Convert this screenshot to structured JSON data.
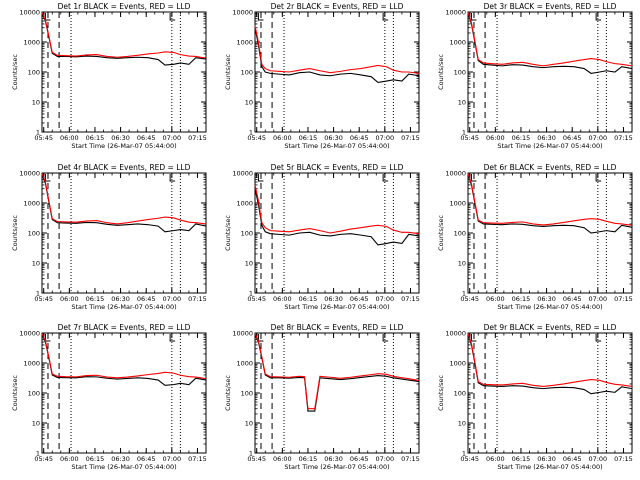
{
  "figure": {
    "series_colors": {
      "events": "#000000",
      "lld": "#ff0000"
    },
    "y_scale": "log",
    "ylim": [
      1,
      10000
    ],
    "xlim": [
      "05:44",
      "07:20"
    ],
    "x_tick_labels": [
      "05:45",
      "06:00",
      "06:15",
      "06:30",
      "06:45",
      "07:00",
      "07:15"
    ],
    "y_tick_labels": [
      "1",
      "10",
      "100",
      "1000",
      "10000"
    ]
  },
  "chart_data": [
    {
      "type": "line",
      "title": "Det 1r BLACK = Events, RED = LLD",
      "xlabel": "Start Time (26-Mar-07 05:44:00)",
      "ylabel": "Counts/sec",
      "x_tick_labels": [
        "05:45",
        "06:00",
        "06:15",
        "06:30",
        "06:45",
        "07:00",
        "07:15"
      ],
      "y_tick_labels": [
        "1",
        "10",
        "100",
        "1000",
        "10000"
      ],
      "x_minutes": [
        0,
        2,
        4,
        6,
        9,
        14,
        20,
        26,
        32,
        38,
        44,
        50,
        56,
        62,
        68,
        72,
        77,
        81,
        86,
        90,
        96
      ],
      "series": [
        {
          "values": [
            9000,
            5000,
            1500,
            420,
            330,
            330,
            320,
            340,
            330,
            300,
            285,
            300,
            310,
            300,
            260,
            170,
            180,
            200,
            180,
            300,
            270
          ]
        },
        {
          "values": [
            9500,
            5500,
            1600,
            450,
            360,
            350,
            340,
            370,
            380,
            330,
            310,
            330,
            360,
            400,
            430,
            470,
            450,
            380,
            340,
            330,
            290
          ]
        }
      ],
      "vlines_dashed": [
        3.5,
        10
      ],
      "vlines_dotted": [
        17,
        76,
        81
      ]
    },
    {
      "type": "line",
      "title": "Det 2r BLACK = Events, RED = LLD",
      "xlabel": "Start Time (26-Mar-07 05:44:00)",
      "ylabel": "Counts/sec",
      "x_tick_labels": [
        "05:45",
        "06:00",
        "06:15",
        "06:30",
        "06:45",
        "07:00",
        "07:15"
      ],
      "y_tick_labels": [
        "1",
        "10",
        "100",
        "1000",
        "10000"
      ],
      "x_minutes": [
        0,
        2,
        4,
        6,
        9,
        14,
        20,
        26,
        32,
        38,
        44,
        50,
        56,
        62,
        68,
        72,
        77,
        81,
        86,
        90,
        96
      ],
      "series": [
        {
          "values": [
            3000,
            800,
            150,
            100,
            90,
            85,
            80,
            95,
            100,
            80,
            75,
            85,
            90,
            80,
            70,
            45,
            50,
            55,
            50,
            85,
            75
          ]
        },
        {
          "values": [
            3500,
            1000,
            180,
            130,
            110,
            105,
            100,
            115,
            130,
            110,
            95,
            105,
            120,
            130,
            150,
            165,
            150,
            115,
            100,
            100,
            90
          ]
        }
      ],
      "vlines_dashed": [
        3.5,
        10
      ],
      "vlines_dotted": [
        17,
        76,
        81
      ]
    },
    {
      "type": "line",
      "title": "Det 3r BLACK = Events, RED = LLD",
      "xlabel": "Start Time (26-Mar-07 05:44:00)",
      "ylabel": "Counts/sec",
      "x_tick_labels": [
        "05:45",
        "06:00",
        "06:15",
        "06:30",
        "06:45",
        "07:00",
        "07:15"
      ],
      "y_tick_labels": [
        "1",
        "10",
        "100",
        "1000",
        "10000"
      ],
      "x_minutes": [
        0,
        2,
        4,
        6,
        9,
        14,
        20,
        26,
        32,
        38,
        44,
        50,
        56,
        62,
        68,
        72,
        77,
        81,
        86,
        90,
        96
      ],
      "series": [
        {
          "values": [
            9000,
            4000,
            1000,
            240,
            180,
            170,
            160,
            175,
            170,
            150,
            140,
            150,
            155,
            150,
            130,
            90,
            100,
            110,
            100,
            150,
            130
          ]
        },
        {
          "values": [
            9500,
            4500,
            1100,
            260,
            200,
            190,
            180,
            200,
            210,
            180,
            160,
            180,
            200,
            230,
            260,
            280,
            260,
            220,
            190,
            180,
            160
          ]
        }
      ],
      "vlines_dashed": [
        3.5,
        10
      ],
      "vlines_dotted": [
        17,
        76,
        81
      ]
    },
    {
      "type": "line",
      "title": "Det 4r BLACK = Events, RED = LLD",
      "xlabel": "Start Time (26-Mar-07 05:44:00)",
      "ylabel": "Counts/sec",
      "x_tick_labels": [
        "05:45",
        "06:00",
        "06:15",
        "06:30",
        "06:45",
        "07:00",
        "07:15"
      ],
      "y_tick_labels": [
        "1",
        "10",
        "100",
        "1000",
        "10000"
      ],
      "x_minutes": [
        0,
        2,
        4,
        6,
        9,
        14,
        20,
        26,
        32,
        38,
        44,
        50,
        56,
        62,
        68,
        72,
        77,
        81,
        86,
        90,
        96
      ],
      "series": [
        {
          "values": [
            9000,
            4500,
            1100,
            280,
            220,
            215,
            210,
            225,
            220,
            195,
            180,
            190,
            200,
            190,
            170,
            110,
            120,
            130,
            120,
            200,
            170
          ]
        },
        {
          "values": [
            9500,
            5000,
            1200,
            300,
            240,
            235,
            230,
            250,
            260,
            220,
            200,
            220,
            250,
            280,
            310,
            340,
            320,
            270,
            230,
            220,
            200
          ]
        }
      ],
      "vlines_dashed": [
        3.5,
        10
      ],
      "vlines_dotted": [
        17,
        76,
        81
      ]
    },
    {
      "type": "line",
      "title": "Det 5r BLACK = Events, RED = LLD",
      "xlabel": "Start Time (26-Mar-07 05:44:00)",
      "ylabel": "Counts/sec",
      "x_tick_labels": [
        "05:45",
        "06:00",
        "06:15",
        "06:30",
        "06:45",
        "07:00",
        "07:15"
      ],
      "y_tick_labels": [
        "1",
        "10",
        "100",
        "1000",
        "10000"
      ],
      "x_minutes": [
        0,
        2,
        4,
        6,
        9,
        14,
        20,
        26,
        32,
        38,
        44,
        50,
        56,
        62,
        68,
        72,
        77,
        81,
        86,
        90,
        96
      ],
      "series": [
        {
          "values": [
            3000,
            900,
            180,
            110,
            95,
            90,
            85,
            100,
            105,
            85,
            80,
            90,
            95,
            85,
            75,
            40,
            45,
            50,
            45,
            90,
            80
          ]
        },
        {
          "values": [
            4000,
            1200,
            220,
            150,
            120,
            115,
            110,
            125,
            140,
            120,
            100,
            115,
            135,
            150,
            170,
            180,
            165,
            125,
            105,
            105,
            95
          ]
        }
      ],
      "vlines_dashed": [
        3.5,
        10
      ],
      "vlines_dotted": [
        17,
        76,
        81
      ]
    },
    {
      "type": "line",
      "title": "Det 6r BLACK = Events, RED = LLD",
      "xlabel": "Start Time (26-Mar-07 05:44:00)",
      "ylabel": "Counts/sec",
      "x_tick_labels": [
        "05:45",
        "06:00",
        "06:15",
        "06:30",
        "06:45",
        "07:00",
        "07:15"
      ],
      "y_tick_labels": [
        "1",
        "10",
        "100",
        "1000",
        "10000"
      ],
      "x_minutes": [
        0,
        2,
        4,
        6,
        9,
        14,
        20,
        26,
        32,
        38,
        44,
        50,
        56,
        62,
        68,
        72,
        77,
        81,
        86,
        90,
        96
      ],
      "series": [
        {
          "values": [
            9000,
            4000,
            1000,
            250,
            200,
            195,
            190,
            200,
            195,
            175,
            165,
            175,
            180,
            175,
            150,
            100,
            110,
            120,
            110,
            180,
            155
          ]
        },
        {
          "values": [
            9500,
            4500,
            1100,
            270,
            220,
            215,
            210,
            225,
            235,
            200,
            185,
            200,
            225,
            255,
            285,
            300,
            285,
            245,
            210,
            200,
            180
          ]
        }
      ],
      "vlines_dashed": [
        3.5,
        10
      ],
      "vlines_dotted": [
        17,
        76,
        81
      ]
    },
    {
      "type": "line",
      "title": "Det 7r BLACK = Events, RED = LLD",
      "xlabel": "Start Time (26-Mar-07 05:44:00)",
      "ylabel": "Counts/sec",
      "x_tick_labels": [
        "05:45",
        "06:00",
        "06:15",
        "06:30",
        "06:45",
        "07:00",
        "07:15"
      ],
      "y_tick_labels": [
        "1",
        "10",
        "100",
        "1000",
        "10000"
      ],
      "x_minutes": [
        0,
        2,
        4,
        6,
        9,
        14,
        20,
        26,
        32,
        38,
        44,
        50,
        56,
        62,
        68,
        72,
        77,
        81,
        86,
        90,
        96
      ],
      "series": [
        {
          "values": [
            9000,
            5000,
            1500,
            400,
            330,
            325,
            320,
            350,
            345,
            310,
            290,
            305,
            320,
            305,
            270,
            180,
            190,
            210,
            190,
            310,
            270
          ]
        },
        {
          "values": [
            9500,
            5500,
            1600,
            430,
            360,
            350,
            345,
            380,
            390,
            340,
            320,
            340,
            370,
            410,
            450,
            490,
            460,
            390,
            350,
            340,
            300
          ]
        }
      ],
      "vlines_dashed": [
        3.5,
        10
      ],
      "vlines_dotted": [
        17,
        76,
        81
      ]
    },
    {
      "type": "line",
      "title": "Det 8r BLACK = Events, RED = LLD",
      "xlabel": "Start Time (26-Mar-07 05:44:00)",
      "ylabel": "Counts/sec",
      "x_tick_labels": [
        "05:45",
        "06:00",
        "06:15",
        "06:30",
        "06:45",
        "07:00",
        "07:15"
      ],
      "y_tick_labels": [
        "1",
        "10",
        "100",
        "1000",
        "10000"
      ],
      "x_minutes": [
        0,
        2,
        4,
        6,
        9,
        14,
        20,
        26,
        29,
        31,
        35,
        38,
        44,
        50,
        56,
        62,
        68,
        72,
        77,
        81,
        86,
        90,
        96
      ],
      "series": [
        {
          "values": [
            9000,
            5000,
            1500,
            400,
            320,
            320,
            310,
            330,
            320,
            25,
            25,
            320,
            300,
            280,
            300,
            330,
            360,
            380,
            360,
            320,
            290,
            270,
            240
          ]
        },
        {
          "values": [
            9500,
            5500,
            1600,
            430,
            350,
            345,
            335,
            360,
            350,
            30,
            30,
            360,
            335,
            310,
            335,
            370,
            410,
            440,
            420,
            360,
            320,
            300,
            260
          ]
        }
      ],
      "vlines_dashed": [
        3.5,
        10
      ],
      "vlines_dotted": [
        17,
        76,
        81
      ]
    },
    {
      "type": "line",
      "title": "Det 9r BLACK = Events, RED = LLD",
      "xlabel": "Start Time (26-Mar-07 05:44:00)",
      "ylabel": "Counts/sec",
      "x_tick_labels": [
        "05:45",
        "06:00",
        "06:15",
        "06:30",
        "06:45",
        "07:00",
        "07:15"
      ],
      "y_tick_labels": [
        "1",
        "10",
        "100",
        "1000",
        "10000"
      ],
      "x_minutes": [
        0,
        2,
        4,
        6,
        9,
        14,
        20,
        26,
        32,
        38,
        44,
        50,
        56,
        62,
        68,
        72,
        77,
        81,
        86,
        90,
        96
      ],
      "series": [
        {
          "values": [
            9000,
            4000,
            1000,
            220,
            175,
            170,
            165,
            175,
            170,
            150,
            140,
            150,
            155,
            150,
            130,
            95,
            105,
            115,
            105,
            160,
            140
          ]
        },
        {
          "values": [
            9500,
            4500,
            1100,
            240,
            195,
            190,
            185,
            200,
            210,
            180,
            165,
            180,
            200,
            230,
            260,
            280,
            265,
            225,
            195,
            185,
            165
          ]
        }
      ],
      "vlines_dashed": [
        3.5,
        10
      ],
      "vlines_dotted": [
        17,
        76,
        81
      ]
    }
  ]
}
